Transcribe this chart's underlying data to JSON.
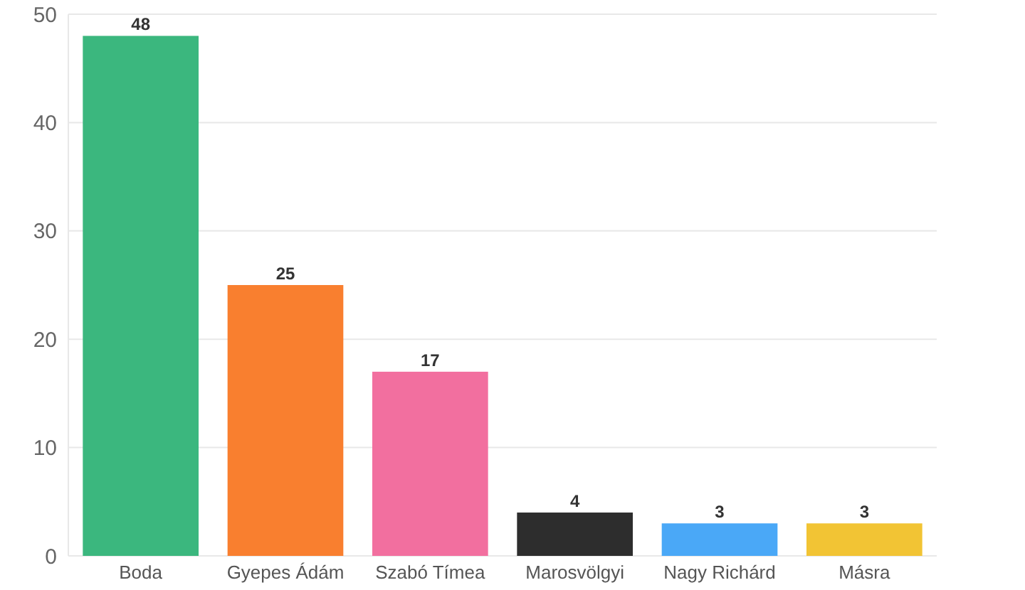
{
  "chart_data": {
    "type": "bar",
    "categories": [
      "Boda",
      "Gyepes Ádám",
      "Szabó Tímea",
      "Marosvölgyi",
      "Nagy Richárd",
      "Másra"
    ],
    "values": [
      48,
      25,
      17,
      4,
      3,
      3
    ],
    "colors": [
      "#3bb77e",
      "#f97f2f",
      "#f26f9f",
      "#2d2d2d",
      "#4aa8f7",
      "#f2c434"
    ],
    "ylim": [
      0,
      50
    ],
    "yticks": [
      0,
      10,
      20,
      30,
      40,
      50
    ],
    "grid": "y",
    "data_labels": true
  }
}
